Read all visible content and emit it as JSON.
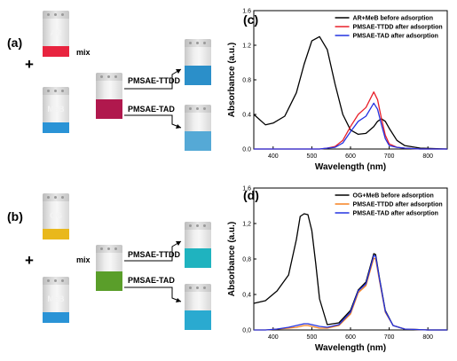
{
  "figure_a": {
    "label": "(a)",
    "dye1": "AR",
    "dye2": "MeB",
    "plus": "+",
    "mix": "mix",
    "adsorbent1": "PMSAE-TTDD",
    "adsorbent2": "PMSAE-TAD",
    "colors": {
      "dye1": "#e8243f",
      "dye2": "#2a93d6",
      "mixed": "#b0184d",
      "out1": "#2b8fc9",
      "out2": "#55a9d6"
    }
  },
  "figure_b": {
    "label": "(b)",
    "dye1": "OG",
    "dye2": "MeB",
    "plus": "+",
    "mix": "mix",
    "adsorbent1": "PMSAE-TTDD",
    "adsorbent2": "PMSAE-TAD",
    "colors": {
      "dye1": "#e9b81c",
      "dye2": "#2a93d6",
      "mixed": "#5a9e2a",
      "out1": "#1fb3bf",
      "out2": "#2aaad0"
    }
  },
  "chart_data": [
    {
      "panel_label": "(c)",
      "type": "line",
      "xlabel": "Wavelength (nm)",
      "ylabel": "Absorbance (a.u.)",
      "xlim": [
        350,
        850
      ],
      "ylim": [
        0,
        1.6
      ],
      "x_ticks": [
        "400",
        "500",
        "600",
        "700",
        "800"
      ],
      "y_ticks": [
        "0.0",
        "0.4",
        "0.8",
        "1.2",
        "1.6"
      ],
      "legend_position": "top-right",
      "x": [
        350,
        380,
        400,
        430,
        460,
        480,
        500,
        520,
        540,
        560,
        580,
        600,
        620,
        640,
        660,
        670,
        680,
        690,
        700,
        720,
        740,
        780,
        850
      ],
      "series": [
        {
          "name": "AR+MeB before adsorption",
          "color": "#000000",
          "values": [
            0.4,
            0.28,
            0.3,
            0.38,
            0.65,
            0.98,
            1.25,
            1.3,
            1.15,
            0.75,
            0.4,
            0.22,
            0.17,
            0.18,
            0.26,
            0.32,
            0.35,
            0.32,
            0.24,
            0.1,
            0.04,
            0.01,
            0.0
          ]
        },
        {
          "name": "PMSAE-TTDD after adsorption",
          "color": "#e8202a",
          "values": [
            0.0,
            0.0,
            0.0,
            0.0,
            0.0,
            0.0,
            0.0,
            0.0,
            0.01,
            0.03,
            0.1,
            0.26,
            0.4,
            0.48,
            0.66,
            0.57,
            0.35,
            0.16,
            0.06,
            0.02,
            0.01,
            0.0,
            0.0
          ]
        },
        {
          "name": "PMSAE-TAD after adsorption",
          "color": "#2433e0",
          "values": [
            0.0,
            0.0,
            0.0,
            0.0,
            0.0,
            0.0,
            0.0,
            0.0,
            0.01,
            0.02,
            0.07,
            0.2,
            0.32,
            0.38,
            0.53,
            0.46,
            0.28,
            0.12,
            0.04,
            0.02,
            0.01,
            0.0,
            0.0
          ]
        }
      ]
    },
    {
      "panel_label": "(d)",
      "type": "line",
      "xlabel": "Wavelength (nm)",
      "ylabel": "Absorbance (a.u.)",
      "xlim": [
        350,
        850
      ],
      "ylim": [
        0,
        1.6
      ],
      "x_ticks": [
        "400",
        "500",
        "600",
        "700",
        "800"
      ],
      "y_ticks": [
        "0,0",
        "0,4",
        "0,8",
        "1,2",
        "1,6"
      ],
      "legend_position": "top-right",
      "x": [
        350,
        380,
        410,
        440,
        460,
        470,
        480,
        490,
        500,
        510,
        520,
        540,
        570,
        600,
        620,
        640,
        660,
        665,
        675,
        690,
        710,
        740,
        800,
        850
      ],
      "series": [
        {
          "name": "OG+MeB before adsorption",
          "color": "#000000",
          "values": [
            0.3,
            0.33,
            0.44,
            0.62,
            1.02,
            1.28,
            1.31,
            1.3,
            1.12,
            0.75,
            0.35,
            0.06,
            0.08,
            0.22,
            0.45,
            0.54,
            0.86,
            0.85,
            0.58,
            0.22,
            0.05,
            0.01,
            0.0,
            0.0
          ]
        },
        {
          "name": "PMSAE-TTDD after adsorption",
          "color": "#f58220",
          "values": [
            0.0,
            0.0,
            0.01,
            0.02,
            0.03,
            0.04,
            0.05,
            0.05,
            0.04,
            0.03,
            0.02,
            0.02,
            0.05,
            0.18,
            0.42,
            0.5,
            0.81,
            0.8,
            0.55,
            0.2,
            0.05,
            0.01,
            0.0,
            0.0
          ]
        },
        {
          "name": "PMSAE-TAD after adsorption",
          "color": "#2433e0",
          "values": [
            0.0,
            0.0,
            0.01,
            0.03,
            0.05,
            0.06,
            0.07,
            0.07,
            0.06,
            0.05,
            0.04,
            0.03,
            0.06,
            0.2,
            0.44,
            0.52,
            0.84,
            0.83,
            0.57,
            0.21,
            0.05,
            0.01,
            0.0,
            0.0
          ]
        }
      ]
    }
  ]
}
